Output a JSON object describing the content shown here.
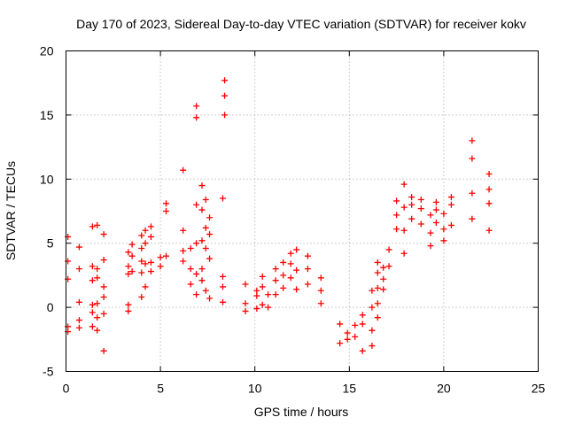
{
  "chart_data": {
    "type": "scatter",
    "title": "Day 170 of 2023, Sidereal Day-to-day VTEC variation (SDTVAR) for receiver kokv",
    "xlabel": "GPS time / hours",
    "ylabel": "SDTVAR / TECUs",
    "xlim": [
      0,
      25
    ],
    "ylim": [
      -5,
      20
    ],
    "xticks": [
      0,
      5,
      10,
      15,
      20,
      25
    ],
    "yticks": [
      -5,
      0,
      5,
      10,
      15,
      20
    ],
    "grid": true,
    "marker": "+",
    "series_color": "#ff0000",
    "series": [
      {
        "name": "SDTVAR",
        "clusters": [
          {
            "x": 0.1,
            "y": [
              -1.9,
              -1.5,
              2.2,
              3.6,
              5.5
            ]
          },
          {
            "x": 0.7,
            "y": [
              -1.6,
              -1.0,
              0.4,
              3.0,
              4.7
            ]
          },
          {
            "x": 1.4,
            "y": [
              -1.5,
              -0.4,
              0.2,
              2.1,
              3.2,
              6.3
            ]
          },
          {
            "x": 1.65,
            "y": [
              -1.8,
              -0.8,
              0.3,
              2.3,
              3.0,
              6.4
            ]
          },
          {
            "x": 2.0,
            "y": [
              -3.4,
              -0.5,
              0.8,
              1.6,
              3.7,
              5.7
            ]
          },
          {
            "x": 3.3,
            "y": [
              -0.3,
              0.2,
              2.6,
              3.2,
              4.3
            ]
          },
          {
            "x": 3.5,
            "y": [
              2.8,
              4.0,
              4.9
            ]
          },
          {
            "x": 4.0,
            "y": [
              0.8,
              2.7,
              3.6,
              4.6,
              5.6
            ]
          },
          {
            "x": 4.2,
            "y": [
              1.6,
              3.4,
              5.0,
              6.0
            ]
          },
          {
            "x": 4.5,
            "y": [
              2.8,
              3.5,
              5.5,
              6.3
            ]
          },
          {
            "x": 5.0,
            "y": [
              3.2,
              3.9
            ]
          },
          {
            "x": 5.3,
            "y": [
              4.0,
              7.5,
              8.1
            ]
          },
          {
            "x": 6.2,
            "y": [
              3.6,
              4.4,
              6.0,
              10.7
            ]
          },
          {
            "x": 6.6,
            "y": [
              1.8,
              3.0,
              4.6
            ]
          },
          {
            "x": 6.9,
            "y": [
              1.0,
              2.6,
              5.0,
              8.0,
              15.7,
              14.8
            ]
          },
          {
            "x": 7.2,
            "y": [
              2.1,
              3.0,
              5.2,
              7.6,
              9.5
            ]
          },
          {
            "x": 7.4,
            "y": [
              1.3,
              4.6,
              6.2,
              8.4
            ]
          },
          {
            "x": 7.6,
            "y": [
              0.7,
              3.8,
              5.7,
              7.0
            ]
          },
          {
            "x": 8.3,
            "y": [
              0.4,
              1.6,
              2.4,
              8.5
            ]
          },
          {
            "x": 8.4,
            "y": [
              15.0,
              16.5,
              17.7
            ]
          },
          {
            "x": 9.5,
            "y": [
              -0.3,
              0.3,
              1.8
            ]
          },
          {
            "x": 10.1,
            "y": [
              -0.1,
              0.9,
              1.3
            ]
          },
          {
            "x": 10.4,
            "y": [
              0.2,
              1.6,
              2.4
            ]
          },
          {
            "x": 10.7,
            "y": [
              0.0,
              1.0
            ]
          },
          {
            "x": 11.1,
            "y": [
              1.0,
              2.1,
              3.0
            ]
          },
          {
            "x": 11.5,
            "y": [
              1.5,
              2.5,
              3.5
            ]
          },
          {
            "x": 11.9,
            "y": [
              2.3,
              3.4,
              4.2
            ]
          },
          {
            "x": 12.2,
            "y": [
              1.4,
              2.9,
              4.5
            ]
          },
          {
            "x": 12.8,
            "y": [
              1.8,
              3.0,
              4.0
            ]
          },
          {
            "x": 13.5,
            "y": [
              0.3,
              1.3,
              2.3
            ]
          },
          {
            "x": 14.5,
            "y": [
              -1.3,
              -2.8
            ]
          },
          {
            "x": 14.9,
            "y": [
              -2.5,
              -2.0
            ]
          },
          {
            "x": 15.3,
            "y": [
              -2.3,
              -1.4
            ]
          },
          {
            "x": 15.7,
            "y": [
              -3.4,
              -1.3,
              -0.6
            ]
          },
          {
            "x": 16.2,
            "y": [
              -3.0,
              -1.8,
              0.0,
              1.3
            ]
          },
          {
            "x": 16.5,
            "y": [
              -0.8,
              0.3,
              1.5,
              2.7,
              3.5
            ]
          },
          {
            "x": 16.8,
            "y": [
              1.4,
              2.2,
              3.1
            ]
          },
          {
            "x": 17.1,
            "y": [
              3.2,
              4.5
            ]
          },
          {
            "x": 17.5,
            "y": [
              6.1,
              7.2,
              8.3
            ]
          },
          {
            "x": 17.9,
            "y": [
              4.2,
              6.0,
              7.8,
              9.6
            ]
          },
          {
            "x": 18.3,
            "y": [
              6.9,
              8.0,
              8.6
            ]
          },
          {
            "x": 18.8,
            "y": [
              6.5,
              7.7,
              8.4
            ]
          },
          {
            "x": 19.3,
            "y": [
              4.8,
              5.8,
              7.2
            ]
          },
          {
            "x": 19.6,
            "y": [
              6.6,
              7.6,
              8.2
            ]
          },
          {
            "x": 20.0,
            "y": [
              5.2,
              6.1,
              7.3
            ]
          },
          {
            "x": 20.4,
            "y": [
              6.4,
              8.0,
              8.6
            ]
          },
          {
            "x": 21.5,
            "y": [
              6.9,
              8.9,
              11.6,
              13.0
            ]
          },
          {
            "x": 22.4,
            "y": [
              6.0,
              8.1,
              9.2,
              10.4
            ]
          }
        ]
      }
    ]
  }
}
